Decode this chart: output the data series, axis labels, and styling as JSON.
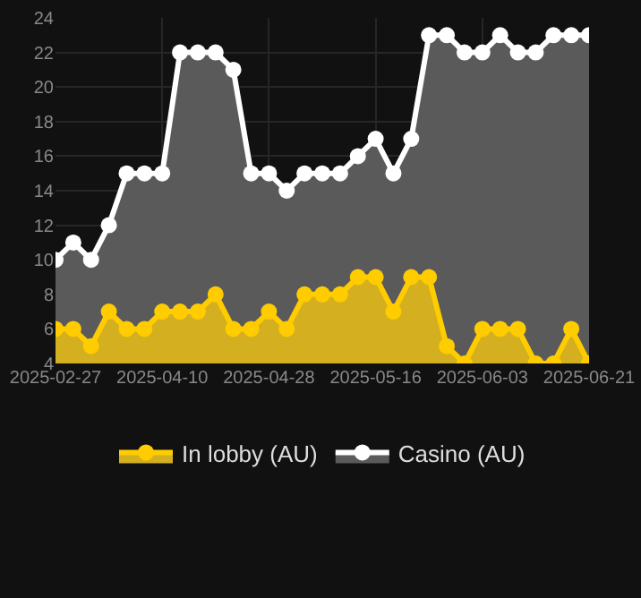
{
  "chart_data": {
    "type": "area",
    "categories": [
      "2025-02-27",
      null,
      null,
      null,
      null,
      null,
      "2025-04-10",
      null,
      null,
      null,
      null,
      null,
      "2025-04-28",
      null,
      null,
      null,
      null,
      null,
      "2025-05-16",
      null,
      null,
      null,
      null,
      null,
      "2025-06-03",
      null,
      null,
      null,
      null,
      null,
      "2025-06-21"
    ],
    "series": [
      {
        "name": "In lobby (AU)",
        "color": "#ffcc00",
        "values": [
          6,
          6,
          5,
          7,
          6,
          6,
          7,
          7,
          7,
          8,
          6,
          6,
          7,
          6,
          8,
          8,
          8,
          9,
          9,
          7,
          9,
          9,
          5,
          4,
          6,
          6,
          6,
          4,
          4,
          6,
          4
        ]
      },
      {
        "name": "Casino (AU)",
        "color": "#ffffff",
        "values": [
          10,
          11,
          10,
          12,
          15,
          15,
          15,
          22,
          22,
          22,
          21,
          15,
          15,
          14,
          15,
          15,
          15,
          16,
          17,
          15,
          17,
          23,
          23,
          22,
          22,
          23,
          22,
          22,
          23,
          23,
          23
        ]
      }
    ],
    "ylim": [
      4,
      24
    ],
    "yticks": [
      4,
      6,
      8,
      10,
      12,
      14,
      16,
      18,
      20,
      22,
      24
    ],
    "grid": true,
    "legend": "bottom",
    "marker": "circle",
    "line_style": "solid"
  }
}
